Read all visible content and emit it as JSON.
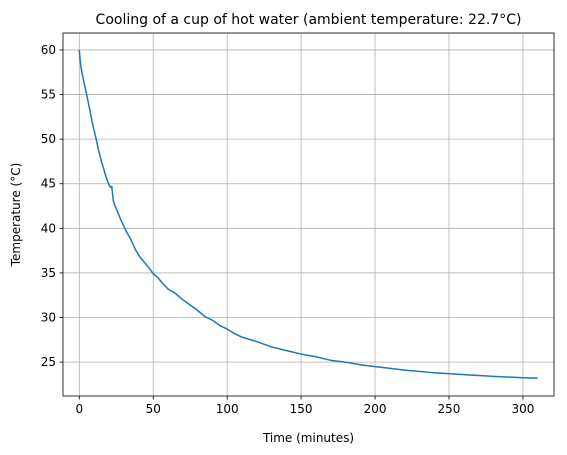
{
  "chart_data": {
    "type": "line",
    "title": "Cooling of a cup of hot water (ambient temperature: 22.7°C)",
    "xlabel": "Time (minutes)",
    "ylabel": "Temperature (°C)",
    "xlim": [
      -11,
      321
    ],
    "ylim": [
      21.2,
      61.9
    ],
    "x_ticks": [
      0,
      50,
      100,
      150,
      200,
      250,
      300
    ],
    "y_ticks": [
      25,
      30,
      35,
      40,
      45,
      50,
      55,
      60
    ],
    "grid": true,
    "line_color": "#1f77b4",
    "grid_color": "#b0b0b0",
    "series": [
      {
        "x": [
          0,
          1,
          2,
          3,
          5,
          7,
          9,
          11,
          13,
          15,
          17,
          18,
          20,
          21,
          22,
          23,
          24,
          26,
          28,
          30,
          32,
          35,
          38,
          41,
          44,
          47,
          50,
          53,
          56,
          60,
          65,
          70,
          75,
          80,
          85,
          90,
          95,
          100,
          105,
          110,
          120,
          130,
          140,
          150,
          160,
          170,
          180,
          190,
          200,
          220,
          240,
          260,
          280,
          300,
          310
        ],
        "y": [
          60.0,
          58.2,
          57.3,
          56.5,
          55.0,
          53.4,
          51.7,
          50.3,
          48.8,
          47.5,
          46.4,
          45.8,
          44.9,
          44.6,
          44.7,
          43.1,
          42.6,
          41.8,
          41.0,
          40.3,
          39.6,
          38.7,
          37.6,
          36.8,
          36.2,
          35.6,
          34.9,
          34.5,
          33.9,
          33.2,
          32.7,
          32.0,
          31.4,
          30.8,
          30.1,
          29.7,
          29.1,
          28.7,
          28.2,
          27.8,
          27.3,
          26.7,
          26.3,
          25.9,
          25.6,
          25.2,
          25.0,
          24.7,
          24.5,
          24.1,
          23.8,
          23.6,
          23.4,
          23.25,
          23.2
        ]
      }
    ]
  }
}
